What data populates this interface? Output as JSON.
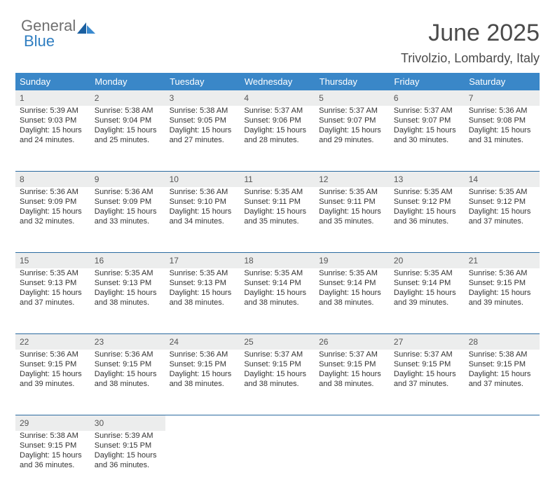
{
  "brand": {
    "line1": "General",
    "line2": "Blue"
  },
  "title": "June 2025",
  "subtitle": "Trivolzio, Lombardy, Italy",
  "colors": {
    "header_bg": "#3a87c8",
    "header_fg": "#ffffff",
    "daynum_bg": "#eceded",
    "row_divider": "#2a6aa0",
    "title_color": "#4a4a4a",
    "logo_gray": "#6f6f6f",
    "logo_blue": "#2f7ec1"
  },
  "fonts": {
    "title_pt": 34,
    "subtitle_pt": 18,
    "th_pt": 13,
    "cell_pt": 11
  },
  "weekdays": [
    "Sunday",
    "Monday",
    "Tuesday",
    "Wednesday",
    "Thursday",
    "Friday",
    "Saturday"
  ],
  "labels": {
    "sunrise": "Sunrise:",
    "sunset": "Sunset:",
    "daylight": "Daylight:"
  },
  "days": {
    "1": {
      "sunrise": "5:39 AM",
      "sunset": "9:03 PM",
      "daylight": "15 hours and 24 minutes."
    },
    "2": {
      "sunrise": "5:38 AM",
      "sunset": "9:04 PM",
      "daylight": "15 hours and 25 minutes."
    },
    "3": {
      "sunrise": "5:38 AM",
      "sunset": "9:05 PM",
      "daylight": "15 hours and 27 minutes."
    },
    "4": {
      "sunrise": "5:37 AM",
      "sunset": "9:06 PM",
      "daylight": "15 hours and 28 minutes."
    },
    "5": {
      "sunrise": "5:37 AM",
      "sunset": "9:07 PM",
      "daylight": "15 hours and 29 minutes."
    },
    "6": {
      "sunrise": "5:37 AM",
      "sunset": "9:07 PM",
      "daylight": "15 hours and 30 minutes."
    },
    "7": {
      "sunrise": "5:36 AM",
      "sunset": "9:08 PM",
      "daylight": "15 hours and 31 minutes."
    },
    "8": {
      "sunrise": "5:36 AM",
      "sunset": "9:09 PM",
      "daylight": "15 hours and 32 minutes."
    },
    "9": {
      "sunrise": "5:36 AM",
      "sunset": "9:09 PM",
      "daylight": "15 hours and 33 minutes."
    },
    "10": {
      "sunrise": "5:36 AM",
      "sunset": "9:10 PM",
      "daylight": "15 hours and 34 minutes."
    },
    "11": {
      "sunrise": "5:35 AM",
      "sunset": "9:11 PM",
      "daylight": "15 hours and 35 minutes."
    },
    "12": {
      "sunrise": "5:35 AM",
      "sunset": "9:11 PM",
      "daylight": "15 hours and 35 minutes."
    },
    "13": {
      "sunrise": "5:35 AM",
      "sunset": "9:12 PM",
      "daylight": "15 hours and 36 minutes."
    },
    "14": {
      "sunrise": "5:35 AM",
      "sunset": "9:12 PM",
      "daylight": "15 hours and 37 minutes."
    },
    "15": {
      "sunrise": "5:35 AM",
      "sunset": "9:13 PM",
      "daylight": "15 hours and 37 minutes."
    },
    "16": {
      "sunrise": "5:35 AM",
      "sunset": "9:13 PM",
      "daylight": "15 hours and 38 minutes."
    },
    "17": {
      "sunrise": "5:35 AM",
      "sunset": "9:13 PM",
      "daylight": "15 hours and 38 minutes."
    },
    "18": {
      "sunrise": "5:35 AM",
      "sunset": "9:14 PM",
      "daylight": "15 hours and 38 minutes."
    },
    "19": {
      "sunrise": "5:35 AM",
      "sunset": "9:14 PM",
      "daylight": "15 hours and 38 minutes."
    },
    "20": {
      "sunrise": "5:35 AM",
      "sunset": "9:14 PM",
      "daylight": "15 hours and 39 minutes."
    },
    "21": {
      "sunrise": "5:36 AM",
      "sunset": "9:15 PM",
      "daylight": "15 hours and 39 minutes."
    },
    "22": {
      "sunrise": "5:36 AM",
      "sunset": "9:15 PM",
      "daylight": "15 hours and 39 minutes."
    },
    "23": {
      "sunrise": "5:36 AM",
      "sunset": "9:15 PM",
      "daylight": "15 hours and 38 minutes."
    },
    "24": {
      "sunrise": "5:36 AM",
      "sunset": "9:15 PM",
      "daylight": "15 hours and 38 minutes."
    },
    "25": {
      "sunrise": "5:37 AM",
      "sunset": "9:15 PM",
      "daylight": "15 hours and 38 minutes."
    },
    "26": {
      "sunrise": "5:37 AM",
      "sunset": "9:15 PM",
      "daylight": "15 hours and 38 minutes."
    },
    "27": {
      "sunrise": "5:37 AM",
      "sunset": "9:15 PM",
      "daylight": "15 hours and 37 minutes."
    },
    "28": {
      "sunrise": "5:38 AM",
      "sunset": "9:15 PM",
      "daylight": "15 hours and 37 minutes."
    },
    "29": {
      "sunrise": "5:38 AM",
      "sunset": "9:15 PM",
      "daylight": "15 hours and 36 minutes."
    },
    "30": {
      "sunrise": "5:39 AM",
      "sunset": "9:15 PM",
      "daylight": "15 hours and 36 minutes."
    }
  },
  "layout": {
    "weeks": [
      [
        1,
        2,
        3,
        4,
        5,
        6,
        7
      ],
      [
        8,
        9,
        10,
        11,
        12,
        13,
        14
      ],
      [
        15,
        16,
        17,
        18,
        19,
        20,
        21
      ],
      [
        22,
        23,
        24,
        25,
        26,
        27,
        28
      ],
      [
        29,
        30,
        null,
        null,
        null,
        null,
        null
      ]
    ]
  }
}
